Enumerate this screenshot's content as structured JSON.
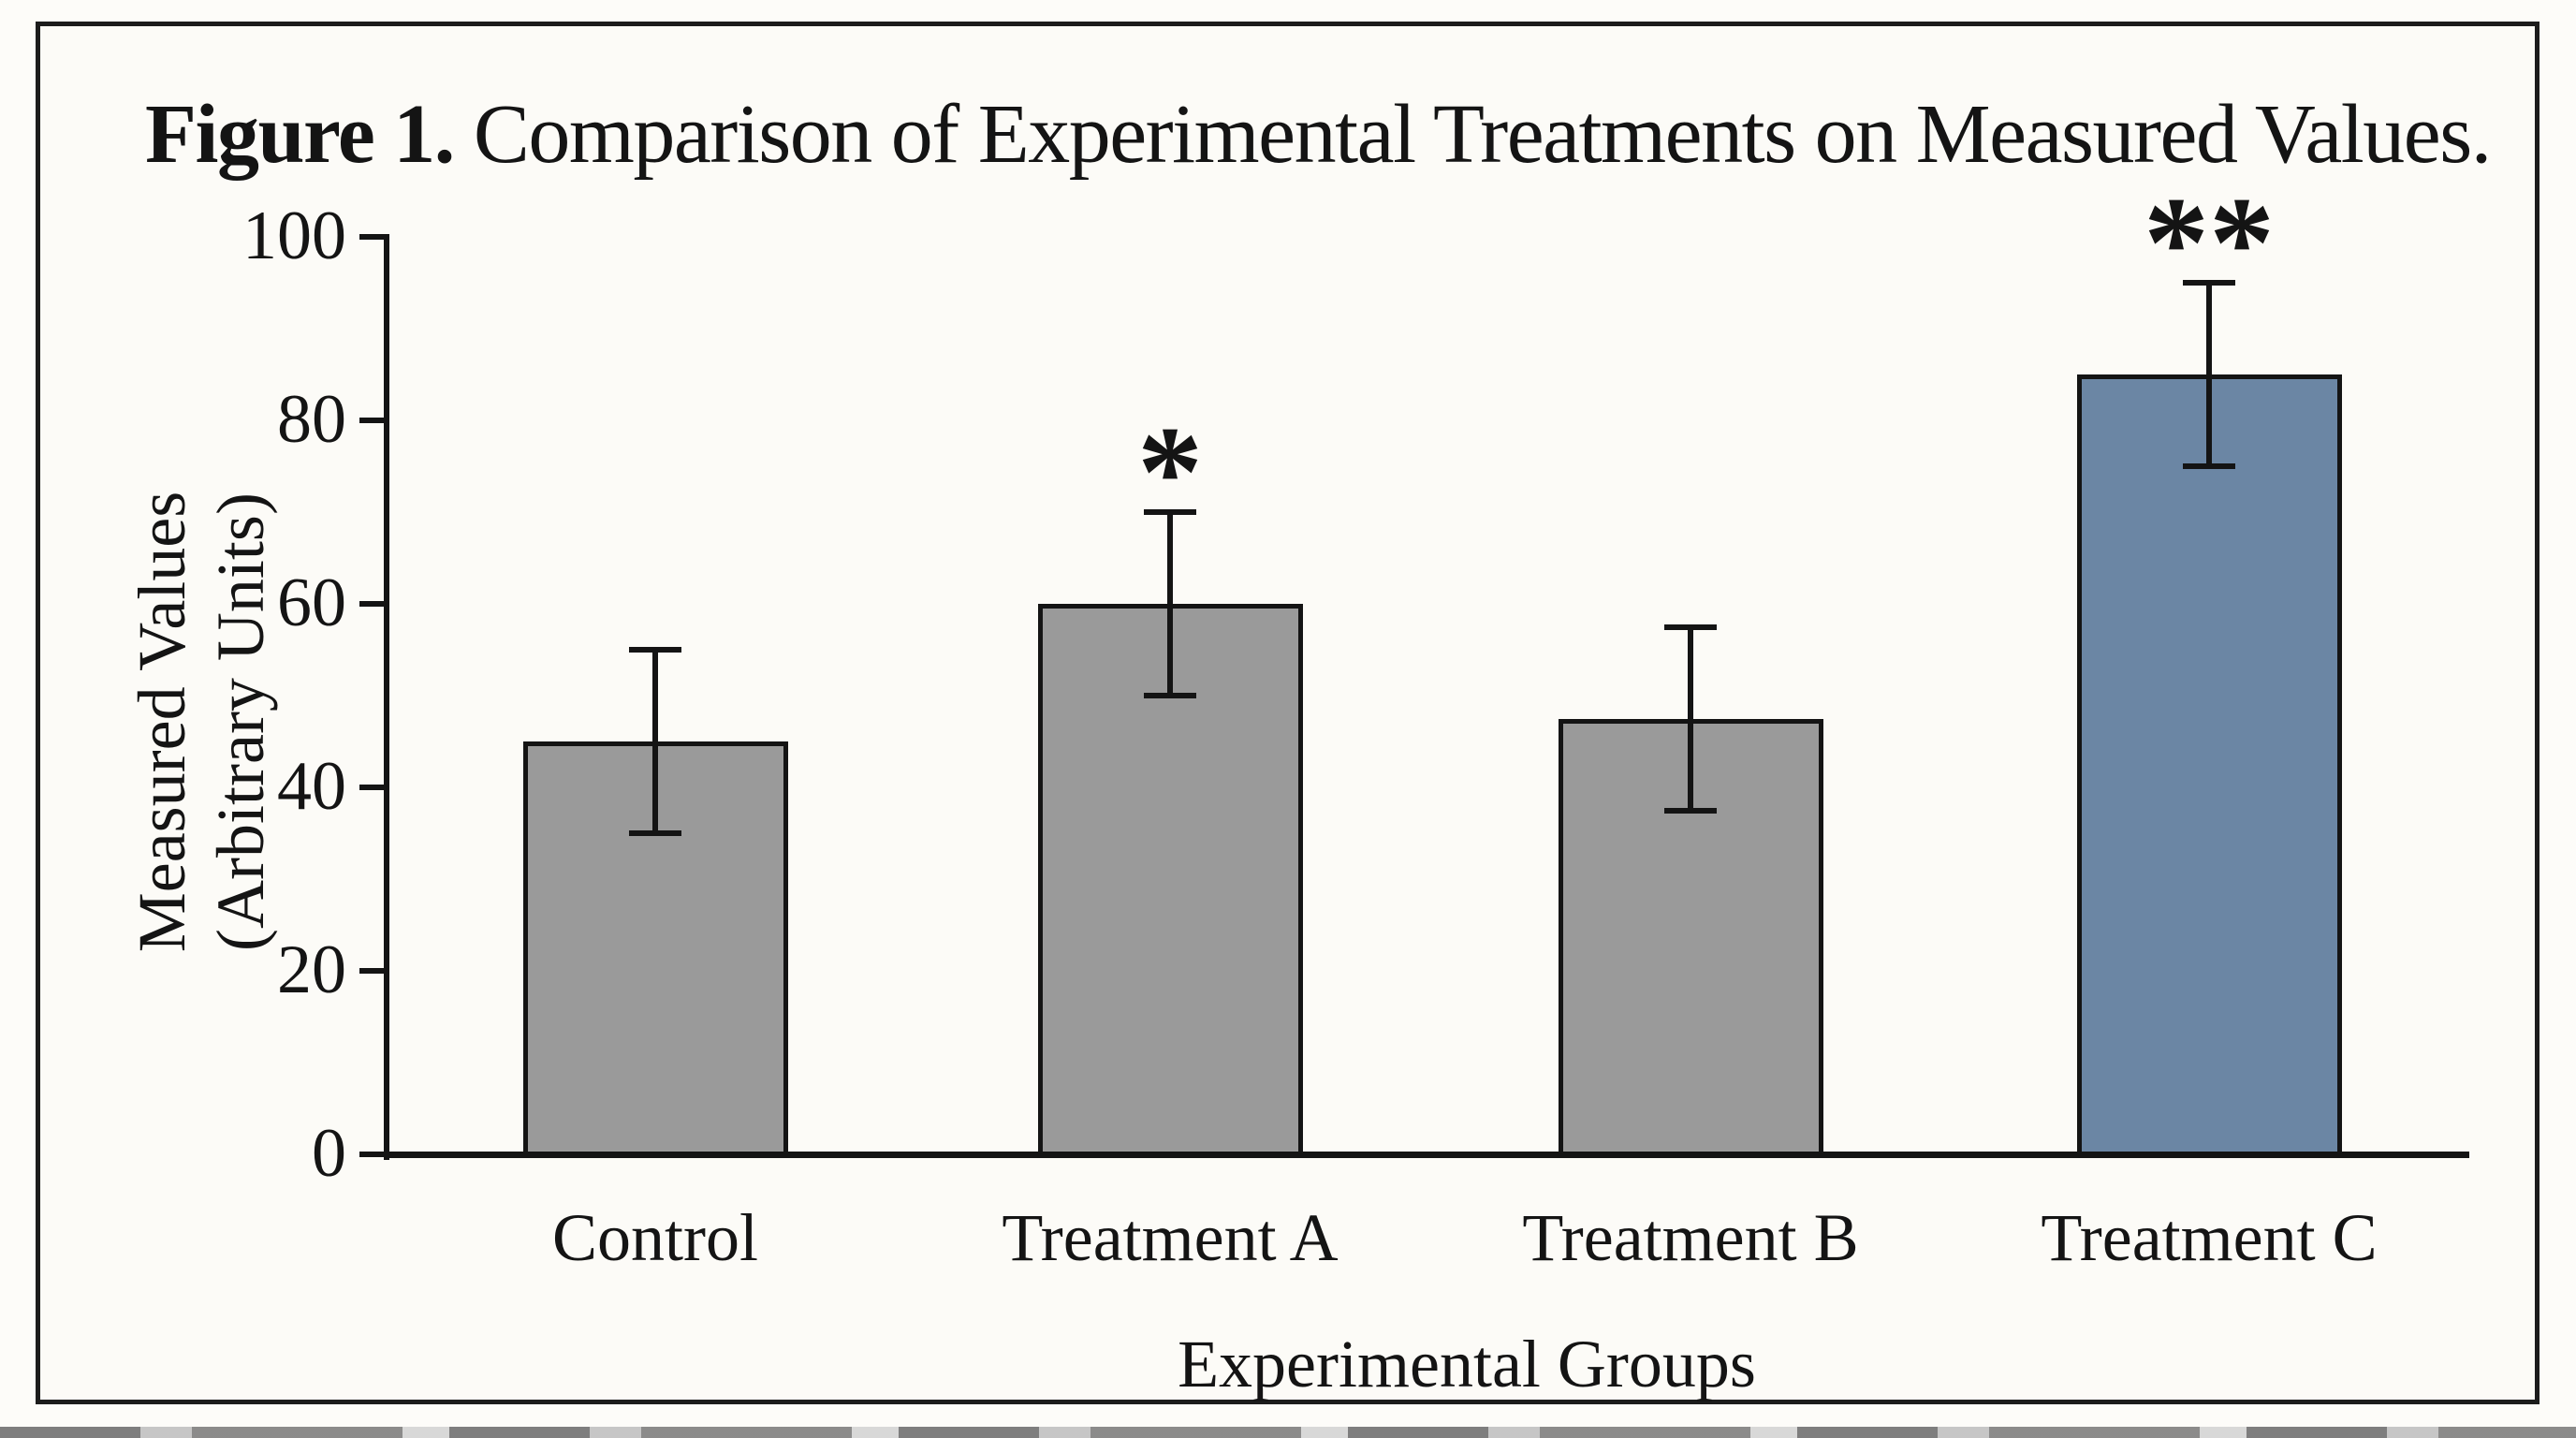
{
  "figure": {
    "title_prefix": "Figure 1.",
    "title_rest": " Comparison of Experimental Treatments on Measured Values."
  },
  "chart_data": {
    "type": "bar",
    "title": "Figure 1. Comparison of Experimental Treatments on Measured Values.",
    "categories": [
      "Control",
      "Treatment A",
      "Treatment B",
      "Treatment C"
    ],
    "values": [
      45,
      60,
      47.5,
      85
    ],
    "error_bars": [
      10,
      10,
      10,
      10
    ],
    "significance": [
      "",
      "*",
      "",
      "**"
    ],
    "bar_colors": [
      "#9a9a9a",
      "#9a9a9a",
      "#9a9a9a",
      "#6b86a4"
    ],
    "xlabel": "Experimental Groups",
    "ylabel_line1": "Measured Values",
    "ylabel_line2": "(Arbitrary Units)",
    "ylim": [
      0,
      100
    ],
    "yticks": [
      0,
      20,
      40,
      60,
      80,
      100
    ],
    "grid": false,
    "legend": false
  },
  "colors": {
    "ink": "#141414",
    "frame_border": "#1c1c1c",
    "background": "#fcfbf7",
    "bar_border": "#141414",
    "gray_bar": "#9a9a9a",
    "blue_bar": "#6b86a4"
  }
}
